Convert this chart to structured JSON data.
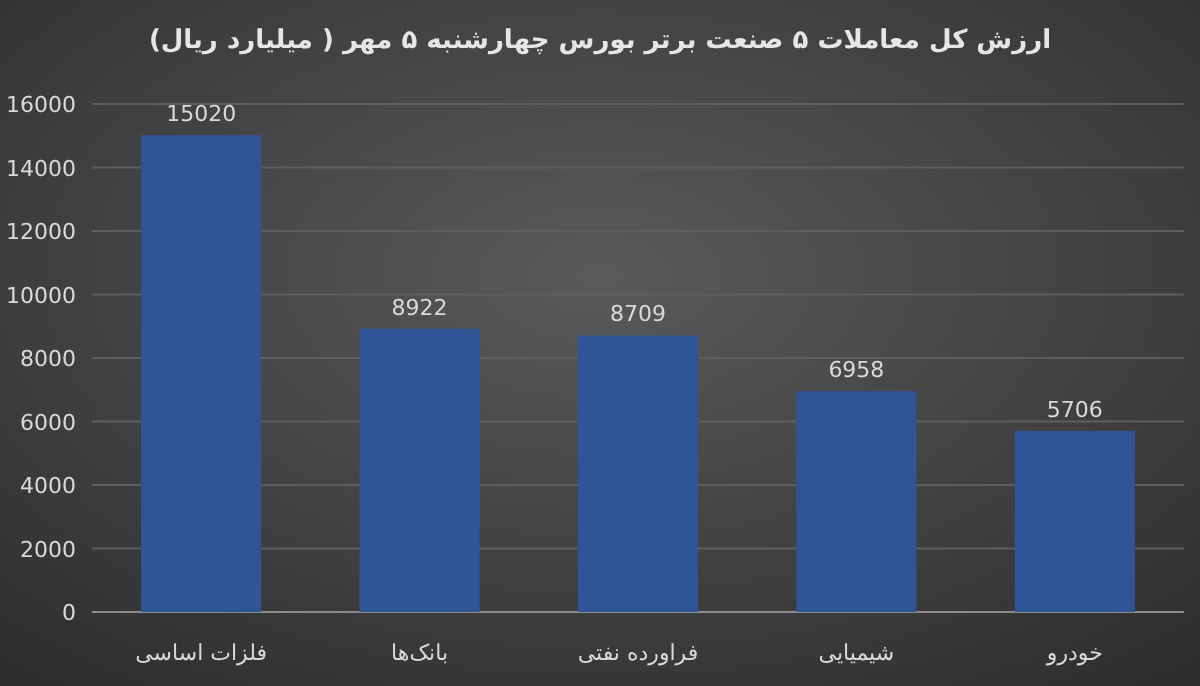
{
  "chart_data": {
    "type": "bar",
    "title": "ارزش کل معاملات ۵ صنعت برتر بورس چهارشنبه ۵ مهر ( میلیارد ریال)",
    "categories": [
      "فلزات اساسی",
      "بانک‌ها",
      "فراورده نفتی",
      "شیمیایی",
      "خودرو"
    ],
    "values": [
      15020,
      8922,
      8709,
      6958,
      5706
    ],
    "color": "#2f5597",
    "ylim": [
      0,
      16000
    ],
    "yticks": [
      0,
      2000,
      4000,
      6000,
      8000,
      10000,
      12000,
      14000,
      16000
    ],
    "grid": "y",
    "data_labels": true
  }
}
